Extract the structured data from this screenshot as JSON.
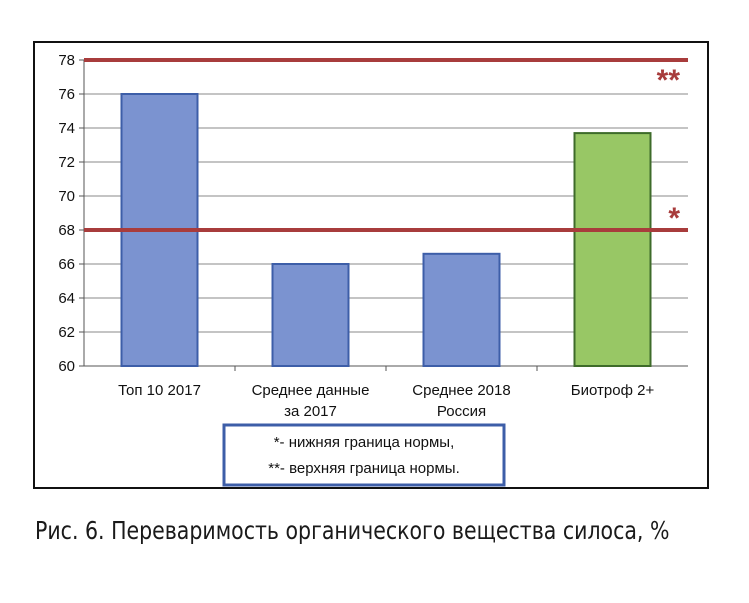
{
  "chart_data": {
    "type": "bar",
    "categories": [
      "Топ 10 2017",
      "Среднее данные за 2017",
      "Среднее 2018 Россия",
      "Биотроф 2+"
    ],
    "category_label_lines": [
      [
        "Топ 10 2017"
      ],
      [
        "Среднее данные",
        "за 2017"
      ],
      [
        "Среднее 2018",
        "Россия"
      ],
      [
        "Биотроф 2+"
      ]
    ],
    "values": [
      76,
      66,
      66.6,
      73.7
    ],
    "bar_colors": [
      "#7b93d0",
      "#7b93d0",
      "#7b93d0",
      "#98c765"
    ],
    "bar_edge_colors": [
      "#3d5ea8",
      "#3d5ea8",
      "#3d5ea8",
      "#3e6b2a"
    ],
    "ylim": [
      60,
      78
    ],
    "yticks": [
      60,
      62,
      64,
      66,
      68,
      70,
      72,
      74,
      76,
      78
    ],
    "grid": true,
    "reference_lines": [
      {
        "value": 78,
        "marker": "**",
        "color": "#a83c3c"
      },
      {
        "value": 68,
        "marker": "*",
        "color": "#a83c3c"
      }
    ],
    "notes": [
      {
        "text": "*- нижняя граница нормы,"
      },
      {
        "text": "**- верхняя граница нормы."
      }
    ],
    "notes_border_color": "#3d5ea8"
  },
  "caption": "Рис. 6. Переваримость органического вещества силоса, %"
}
